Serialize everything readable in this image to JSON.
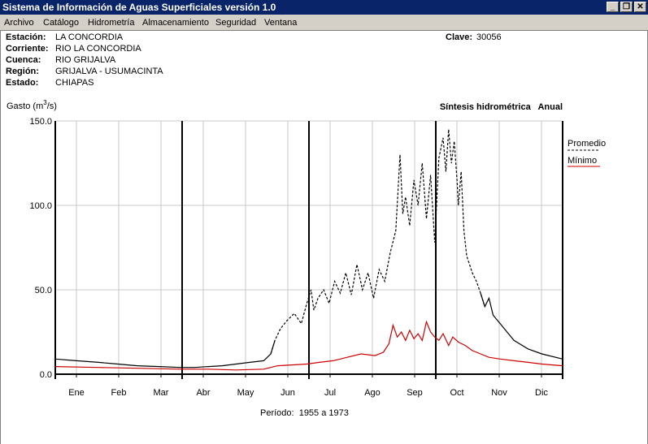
{
  "window": {
    "title": "Sistema de Información de Aguas Superficiales  versión 1.0",
    "controls": [
      "_",
      "❐",
      "✕"
    ]
  },
  "menu": [
    "Archivo",
    "Catálogo",
    "Hidrometría",
    "Almacenamiento",
    "Seguridad",
    "Ventana"
  ],
  "station": {
    "estacion_label": "Estación:",
    "estacion": "LA CONCORDIA",
    "corriente_label": "Corriente:",
    "corriente": "RIO LA CONCORDIA",
    "cuenca_label": "Cuenca:",
    "cuenca": "RIO GRIJALVA",
    "region_label": "Región:",
    "region": "GRIJALVA - USUMACINTA",
    "estado_label": "Estado:",
    "estado": "CHIAPAS",
    "clave_label": "Clave:",
    "clave": "30056"
  },
  "chart_data": {
    "type": "line",
    "title": "Síntesis hidrométrica   Anual",
    "ylabel_prefix": "Gasto (m",
    "ylabel_sup": "3",
    "ylabel_suffix": "/s)",
    "ylim": [
      0,
      150
    ],
    "yticks": [
      "0.0",
      "50.0",
      "100.0",
      "150.0"
    ],
    "xlim": [
      0,
      365
    ],
    "categories": [
      "Ene",
      "Feb",
      "Mar",
      "Abr",
      "May",
      "Jun",
      "Jul",
      "Ago",
      "Sep",
      "Oct",
      "Nov",
      "Dic"
    ],
    "grid": true,
    "legend_position": "top-right",
    "series": [
      {
        "name": "Promedio",
        "color": "#000000",
        "style": "dashed-in-wet-season",
        "points": [
          [
            0,
            9
          ],
          [
            15,
            8
          ],
          [
            31,
            7
          ],
          [
            45,
            6
          ],
          [
            59,
            5
          ],
          [
            75,
            4.5
          ],
          [
            90,
            4
          ],
          [
            100,
            4
          ],
          [
            110,
            4.5
          ],
          [
            120,
            5
          ],
          [
            130,
            6
          ],
          [
            140,
            7
          ],
          [
            150,
            8
          ],
          [
            155,
            12
          ],
          [
            158,
            20
          ],
          [
            162,
            27
          ],
          [
            167,
            32
          ],
          [
            172,
            36
          ],
          [
            177,
            30
          ],
          [
            181,
            42
          ],
          [
            184,
            50
          ],
          [
            186,
            38
          ],
          [
            189,
            45
          ],
          [
            193,
            50
          ],
          [
            197,
            42
          ],
          [
            201,
            55
          ],
          [
            205,
            48
          ],
          [
            209,
            60
          ],
          [
            213,
            47
          ],
          [
            217,
            65
          ],
          [
            221,
            50
          ],
          [
            225,
            60
          ],
          [
            229,
            45
          ],
          [
            233,
            62
          ],
          [
            237,
            55
          ],
          [
            241,
            72
          ],
          [
            245,
            85
          ],
          [
            248,
            130
          ],
          [
            250,
            95
          ],
          [
            252,
            105
          ],
          [
            255,
            88
          ],
          [
            258,
            115
          ],
          [
            261,
            100
          ],
          [
            264,
            125
          ],
          [
            267,
            92
          ],
          [
            270,
            118
          ],
          [
            273,
            78
          ],
          [
            276,
            128
          ],
          [
            279,
            140
          ],
          [
            281,
            120
          ],
          [
            283,
            145
          ],
          [
            285,
            125
          ],
          [
            287,
            138
          ],
          [
            289,
            115
          ],
          [
            290,
            100
          ],
          [
            292,
            120
          ],
          [
            294,
            85
          ],
          [
            296,
            70
          ],
          [
            298,
            65
          ],
          [
            300,
            60
          ],
          [
            303,
            55
          ],
          [
            306,
            48
          ],
          [
            309,
            40
          ],
          [
            312,
            45
          ],
          [
            315,
            35
          ],
          [
            320,
            30
          ],
          [
            325,
            25
          ],
          [
            330,
            20
          ],
          [
            340,
            15
          ],
          [
            350,
            12
          ],
          [
            365,
            9
          ]
        ]
      },
      {
        "name": "Mínimo",
        "color": "#cc0000",
        "style": "solid",
        "points": [
          [
            0,
            4.5
          ],
          [
            31,
            4
          ],
          [
            59,
            3.5
          ],
          [
            90,
            3
          ],
          [
            110,
            3
          ],
          [
            130,
            2.5
          ],
          [
            150,
            3
          ],
          [
            160,
            5
          ],
          [
            170,
            5.5
          ],
          [
            181,
            6
          ],
          [
            190,
            7
          ],
          [
            200,
            8
          ],
          [
            210,
            10
          ],
          [
            220,
            12
          ],
          [
            230,
            11
          ],
          [
            236,
            13
          ],
          [
            240,
            18
          ],
          [
            243,
            29
          ],
          [
            246,
            22
          ],
          [
            249,
            25
          ],
          [
            252,
            20
          ],
          [
            255,
            26
          ],
          [
            258,
            21
          ],
          [
            261,
            24
          ],
          [
            264,
            20
          ],
          [
            267,
            31
          ],
          [
            270,
            25
          ],
          [
            273,
            22
          ],
          [
            276,
            20
          ],
          [
            279,
            24
          ],
          [
            283,
            17
          ],
          [
            286,
            22
          ],
          [
            290,
            19
          ],
          [
            295,
            17
          ],
          [
            300,
            14
          ],
          [
            306,
            12
          ],
          [
            312,
            10
          ],
          [
            320,
            9
          ],
          [
            330,
            8
          ],
          [
            340,
            7
          ],
          [
            350,
            6
          ],
          [
            365,
            5
          ]
        ]
      }
    ],
    "period_label": "Período:  1955 a 1973"
  }
}
